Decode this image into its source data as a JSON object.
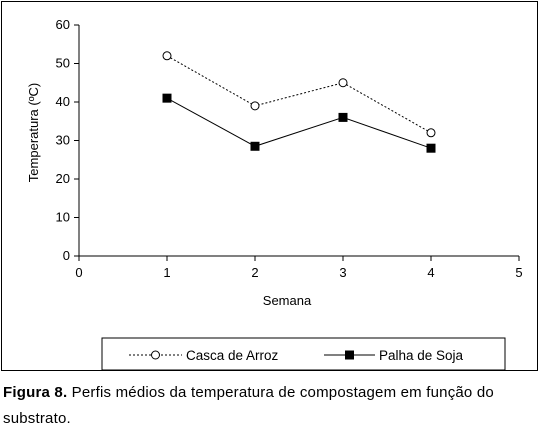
{
  "chart_data": {
    "type": "line",
    "xlabel": "Semana",
    "ylabel": "Temperatura (ºC)",
    "xlim": [
      0,
      5
    ],
    "ylim": [
      0,
      60
    ],
    "xticks": [
      0,
      1,
      2,
      3,
      4,
      5
    ],
    "yticks": [
      0,
      10,
      20,
      30,
      40,
      50,
      60
    ],
    "grid": false,
    "legend_position": "bottom",
    "series": [
      {
        "name": "Casca de Arroz",
        "x": [
          1,
          2,
          3,
          4
        ],
        "values": [
          52,
          39,
          45,
          32
        ],
        "marker": "open-circle",
        "line_style": "dotted",
        "color": "#000000"
      },
      {
        "name": "Palha de Soja",
        "x": [
          1,
          2,
          3,
          4
        ],
        "values": [
          41,
          28.5,
          36,
          28
        ],
        "marker": "filled-square",
        "line_style": "solid",
        "color": "#000000"
      }
    ]
  },
  "caption": {
    "label": "Figura 8.",
    "text": " Perfis médios da temperatura de compostagem em função do substrato."
  }
}
